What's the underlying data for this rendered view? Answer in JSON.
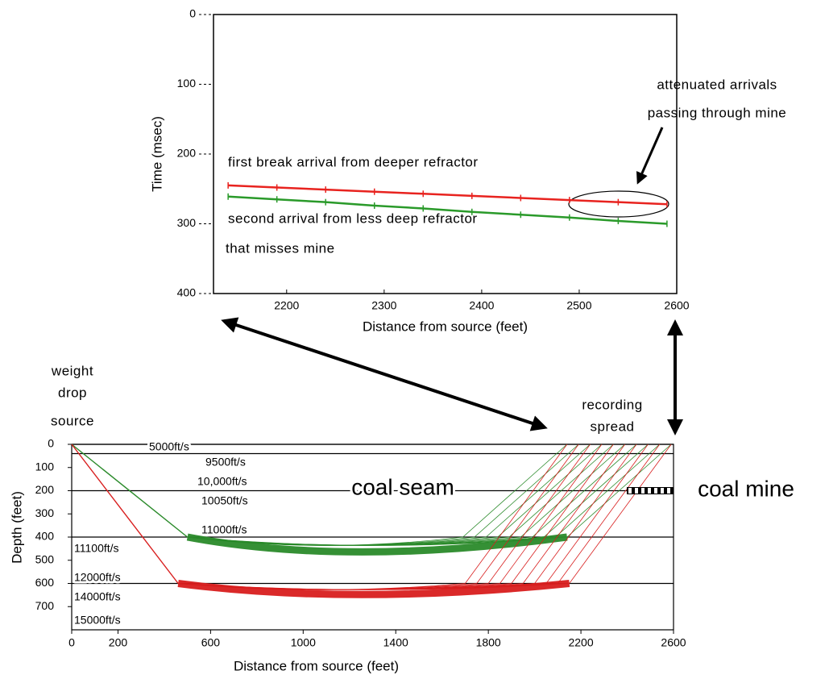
{
  "chart_data": [
    {
      "type": "line",
      "y_label": "Time (msec)",
      "x_label": "Distance from source (feet)",
      "xlim": [
        2125,
        2600
      ],
      "ylim": [
        0,
        400
      ],
      "xticks": [
        2200,
        2300,
        2400,
        2500,
        2600
      ],
      "yticks": [
        0,
        100,
        200,
        300,
        400
      ],
      "x": [
        2140,
        2190,
        2240,
        2290,
        2340,
        2390,
        2440,
        2490,
        2540,
        2590
      ],
      "series": [
        {
          "color": "#e8231f",
          "values": [
            245,
            248,
            251,
            254,
            257,
            260,
            263,
            266,
            269,
            272
          ]
        },
        {
          "color": "#2a9a2a",
          "values": [
            261,
            265,
            269,
            274,
            278,
            283,
            287,
            291,
            296,
            300
          ]
        }
      ],
      "annotations": [
        "first break arrival from deeper refractor",
        "second arrival from less deep refractor",
        "that misses mine",
        "attenuated arrivals",
        "passing through mine"
      ]
    },
    {
      "type": "section",
      "y_label": "Depth (feet)",
      "x_label": "Distance from source (feet)",
      "xlim": [
        0,
        2600
      ],
      "ylim": [
        0,
        800
      ],
      "xticks": [
        0,
        200,
        600,
        1000,
        1400,
        1800,
        2200,
        2600
      ],
      "yticks": [
        0,
        100,
        200,
        300,
        400,
        500,
        600,
        700
      ],
      "interfaces": [
        0,
        40,
        200,
        400,
        600
      ],
      "velocity_labels": [
        "5000ft/s",
        "9500ft/s",
        "10,000ft/s",
        "10050ft/s",
        "11000ft/s",
        "11100ft/s",
        "12000ft/s",
        "14000ft/s",
        "15000ft/s"
      ],
      "annotations": [
        "weight",
        "drop",
        "source",
        "recording",
        "spread",
        "coal seam",
        "coal mine"
      ]
    }
  ]
}
